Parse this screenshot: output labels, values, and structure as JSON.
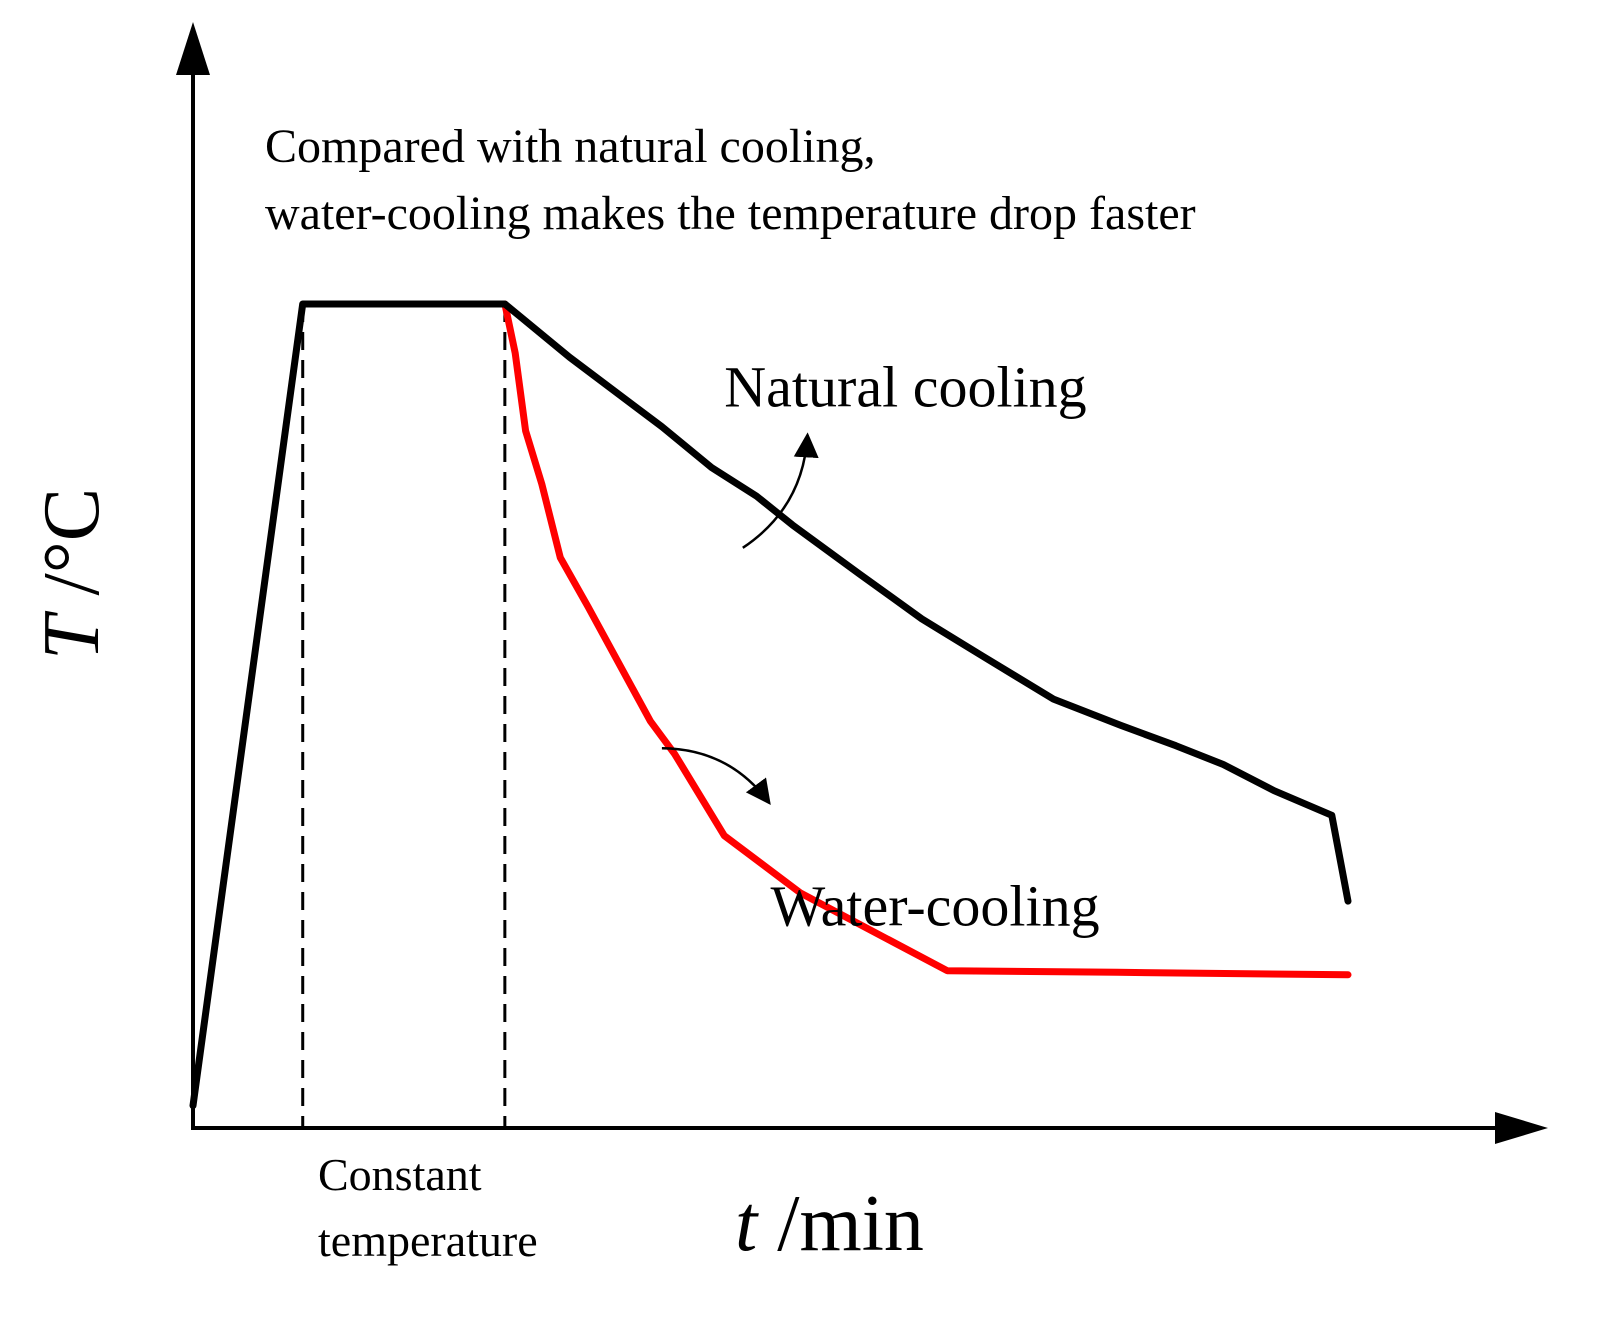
{
  "chart_data": {
    "type": "line",
    "title": "",
    "annotation": {
      "line1": "Compared with natural cooling,",
      "line2": "water-cooling makes the temperature drop faster"
    },
    "xlabel": {
      "var": "t",
      "unit": " /min"
    },
    "ylabel": {
      "var": "T",
      "unit": " /°C"
    },
    "xlim": [
      0,
      100
    ],
    "ylim": [
      0,
      100
    ],
    "ticks_shown": false,
    "grid": false,
    "colors": {
      "natural": "#000000",
      "water": "#ff0000",
      "axis": "#000000"
    },
    "series": [
      {
        "name": "Natural cooling",
        "color": "#000000",
        "points": [
          [
            0,
            2
          ],
          [
            9.5,
            100
          ],
          [
            27,
            100
          ],
          [
            28.3,
            98.5
          ],
          [
            32.6,
            93.5
          ],
          [
            40.6,
            85
          ],
          [
            44.9,
            80
          ],
          [
            48.8,
            76.5
          ],
          [
            51.9,
            73
          ],
          [
            57.7,
            67
          ],
          [
            63.1,
            61.5
          ],
          [
            68.3,
            57
          ],
          [
            74.5,
            51.7
          ],
          [
            80.3,
            48.5
          ],
          [
            85.1,
            46
          ],
          [
            89.2,
            43.7
          ],
          [
            93.6,
            40.5
          ],
          [
            98.6,
            37.5
          ],
          [
            100,
            27
          ]
        ]
      },
      {
        "name": "Water-cooling",
        "color": "#ff0000",
        "points": [
          [
            27,
            100
          ],
          [
            27.9,
            94
          ],
          [
            28.8,
            84.5
          ],
          [
            30.2,
            78
          ],
          [
            31.8,
            69
          ],
          [
            34.2,
            63
          ],
          [
            39.6,
            49
          ],
          [
            41.7,
            45
          ],
          [
            46,
            35
          ],
          [
            52.6,
            28
          ],
          [
            65.3,
            18.5
          ],
          [
            80,
            18.3
          ],
          [
            100,
            18
          ]
        ]
      }
    ],
    "series_labels": [
      {
        "text": "Natural cooling",
        "anchor": [
          46,
          87.5
        ],
        "arrow_from": [
          47.6,
          70.2
        ],
        "arrow_to": [
          53.2,
          84
        ]
      },
      {
        "text": "Water-cooling",
        "anchor": [
          50,
          24
        ],
        "arrow_from": [
          40.6,
          45.7
        ],
        "arrow_to": [
          49.9,
          39
        ]
      }
    ],
    "regions": [
      {
        "text_line1": "Constant",
        "text_line2": "temperature",
        "x_start": 9.5,
        "x_end": 27
      }
    ]
  }
}
